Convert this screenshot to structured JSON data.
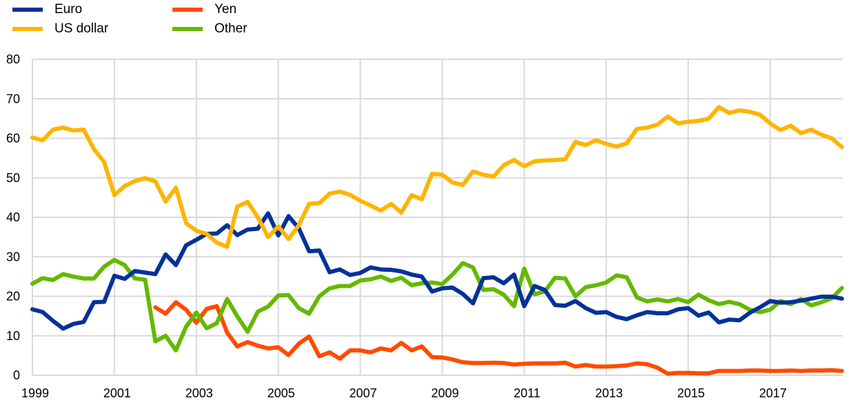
{
  "chart_data": {
    "type": "line",
    "title": "",
    "xlabel": "",
    "ylabel": "",
    "ylim": [
      0,
      80
    ],
    "yticks": [
      "0",
      "10",
      "20",
      "30",
      "40",
      "50",
      "60",
      "70",
      "80"
    ],
    "xticks": [
      "1999",
      "2001",
      "2003",
      "2005",
      "2007",
      "2009",
      "2011",
      "2013",
      "2015",
      "2017"
    ],
    "x_start": "1999Q1",
    "frequency": "quarterly",
    "grid": true,
    "legend_position": "top-left",
    "series": [
      {
        "name": "Euro",
        "color": "#003299",
        "values": [
          16.7,
          16.0,
          13.8,
          11.8,
          13.0,
          13.5,
          18.5,
          18.6,
          25.2,
          24.4,
          26.4,
          26.0,
          25.6,
          30.6,
          27.9,
          32.9,
          34.3,
          35.8,
          35.9,
          38.0,
          35.5,
          36.9,
          37.1,
          41.0,
          35.4,
          40.3,
          37.2,
          31.4,
          31.6,
          26.1,
          26.8,
          25.4,
          25.9,
          27.3,
          26.8,
          26.7,
          26.3,
          25.5,
          25.0,
          21.2,
          22.0,
          22.2,
          20.6,
          18.2,
          24.6,
          24.8,
          23.3,
          25.5,
          17.5,
          22.6,
          21.6,
          17.8,
          17.6,
          18.8,
          17.0,
          15.8,
          16.0,
          14.8,
          14.2,
          15.2,
          16.0,
          15.7,
          15.7,
          16.7,
          17.0,
          15.1,
          15.9,
          13.4,
          14.1,
          13.9,
          15.8,
          17.2,
          18.8,
          18.4,
          18.5,
          18.9,
          19.4,
          19.9,
          19.9,
          19.4
        ]
      },
      {
        "name": "US dollar",
        "color": "#FFB400",
        "values": [
          60.2,
          59.5,
          62.2,
          62.7,
          62.0,
          62.2,
          57.3,
          54.0,
          45.6,
          47.9,
          49.2,
          49.9,
          49.1,
          44.0,
          47.5,
          38.5,
          36.6,
          35.8,
          33.6,
          32.5,
          42.7,
          43.9,
          40.0,
          35.0,
          37.7,
          34.5,
          38.0,
          43.4,
          43.6,
          46.0,
          46.5,
          45.7,
          44.2,
          43.0,
          41.7,
          43.4,
          41.2,
          45.6,
          44.6,
          51.0,
          50.8,
          48.8,
          48.2,
          51.6,
          50.8,
          50.3,
          53.2,
          54.5,
          52.9,
          54.2,
          54.4,
          54.5,
          54.7,
          59.1,
          58.3,
          59.5,
          58.6,
          57.9,
          58.7,
          62.4,
          62.7,
          63.5,
          65.5,
          63.8,
          64.2,
          64.4,
          65.0,
          67.9,
          66.4,
          67.1,
          66.7,
          66.0,
          63.8,
          62.1,
          63.2,
          61.3,
          62.2,
          60.9,
          60.0,
          57.8
        ]
      },
      {
        "name": "Yen",
        "color": "#FF4B00",
        "values": [
          null,
          null,
          null,
          null,
          null,
          null,
          null,
          null,
          null,
          null,
          null,
          null,
          17.2,
          15.6,
          18.5,
          16.6,
          13.3,
          16.8,
          17.5,
          10.8,
          7.3,
          8.4,
          7.5,
          6.8,
          7.1,
          5.1,
          8.0,
          9.8,
          4.8,
          5.8,
          4.2,
          6.3,
          6.3,
          5.8,
          6.8,
          6.3,
          8.2,
          6.3,
          7.3,
          4.6,
          4.5,
          4.0,
          3.3,
          3.1,
          3.1,
          3.2,
          3.1,
          2.7,
          2.9,
          3.0,
          3.0,
          3.0,
          3.2,
          2.2,
          2.6,
          2.2,
          2.2,
          2.3,
          2.5,
          3.0,
          2.8,
          1.9,
          0.4,
          0.6,
          0.6,
          0.5,
          0.5,
          1.1,
          1.1,
          1.1,
          1.2,
          1.2,
          1.1,
          1.1,
          1.2,
          1.1,
          1.2,
          1.2,
          1.3,
          1.1
        ]
      },
      {
        "name": "Other",
        "color": "#65B800",
        "values": [
          23.2,
          24.6,
          24.1,
          25.6,
          25.0,
          24.5,
          24.5,
          27.5,
          29.2,
          27.9,
          24.5,
          24.2,
          8.6,
          10.0,
          6.3,
          12.3,
          15.9,
          11.9,
          13.2,
          19.3,
          14.9,
          11.0,
          16.1,
          17.4,
          20.2,
          20.3,
          17.0,
          15.6,
          20.0,
          22.0,
          22.6,
          22.6,
          24.0,
          24.3,
          25.0,
          23.9,
          24.7,
          22.8,
          23.3,
          23.5,
          23.1,
          25.5,
          28.4,
          27.3,
          21.6,
          21.8,
          20.4,
          17.5,
          27.0,
          20.5,
          21.2,
          24.7,
          24.5,
          20.0,
          22.3,
          22.8,
          23.5,
          25.3,
          24.8,
          19.7,
          18.7,
          19.2,
          18.7,
          19.3,
          18.5,
          20.4,
          19.0,
          18.0,
          18.6,
          18.0,
          16.6,
          16.0,
          16.6,
          18.8,
          18.0,
          19.3,
          17.7,
          18.5,
          19.5,
          22.1
        ]
      }
    ]
  }
}
